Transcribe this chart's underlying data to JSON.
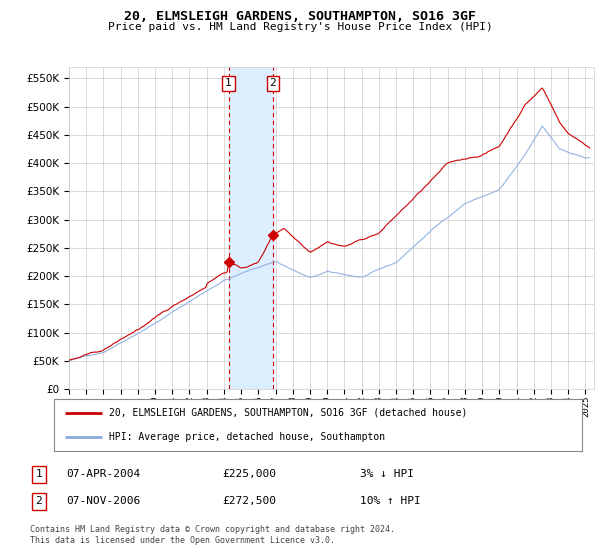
{
  "title": "20, ELMSLEIGH GARDENS, SOUTHAMPTON, SO16 3GF",
  "subtitle": "Price paid vs. HM Land Registry's House Price Index (HPI)",
  "ylim": [
    0,
    570000
  ],
  "yticks": [
    0,
    50000,
    100000,
    150000,
    200000,
    250000,
    300000,
    350000,
    400000,
    450000,
    500000,
    550000
  ],
  "xmin": 1995.0,
  "xmax": 2025.5,
  "transaction1": {
    "date": 2004.27,
    "price": 225000,
    "label": "1"
  },
  "transaction2": {
    "date": 2006.85,
    "price": 272500,
    "label": "2"
  },
  "legend_line1": "20, ELMSLEIGH GARDENS, SOUTHAMPTON, SO16 3GF (detached house)",
  "legend_line2": "HPI: Average price, detached house, Southampton",
  "table_row1": [
    "1",
    "07-APR-2004",
    "£225,000",
    "3% ↓ HPI"
  ],
  "table_row2": [
    "2",
    "07-NOV-2006",
    "£272,500",
    "10% ↑ HPI"
  ],
  "footnote": "Contains HM Land Registry data © Crown copyright and database right 2024.\nThis data is licensed under the Open Government Licence v3.0.",
  "line_color_property": "#cc0000",
  "line_color_hpi": "#88aadd",
  "background_color": "#ffffff",
  "grid_color": "#cccccc",
  "highlight_color": "#ddeeff"
}
